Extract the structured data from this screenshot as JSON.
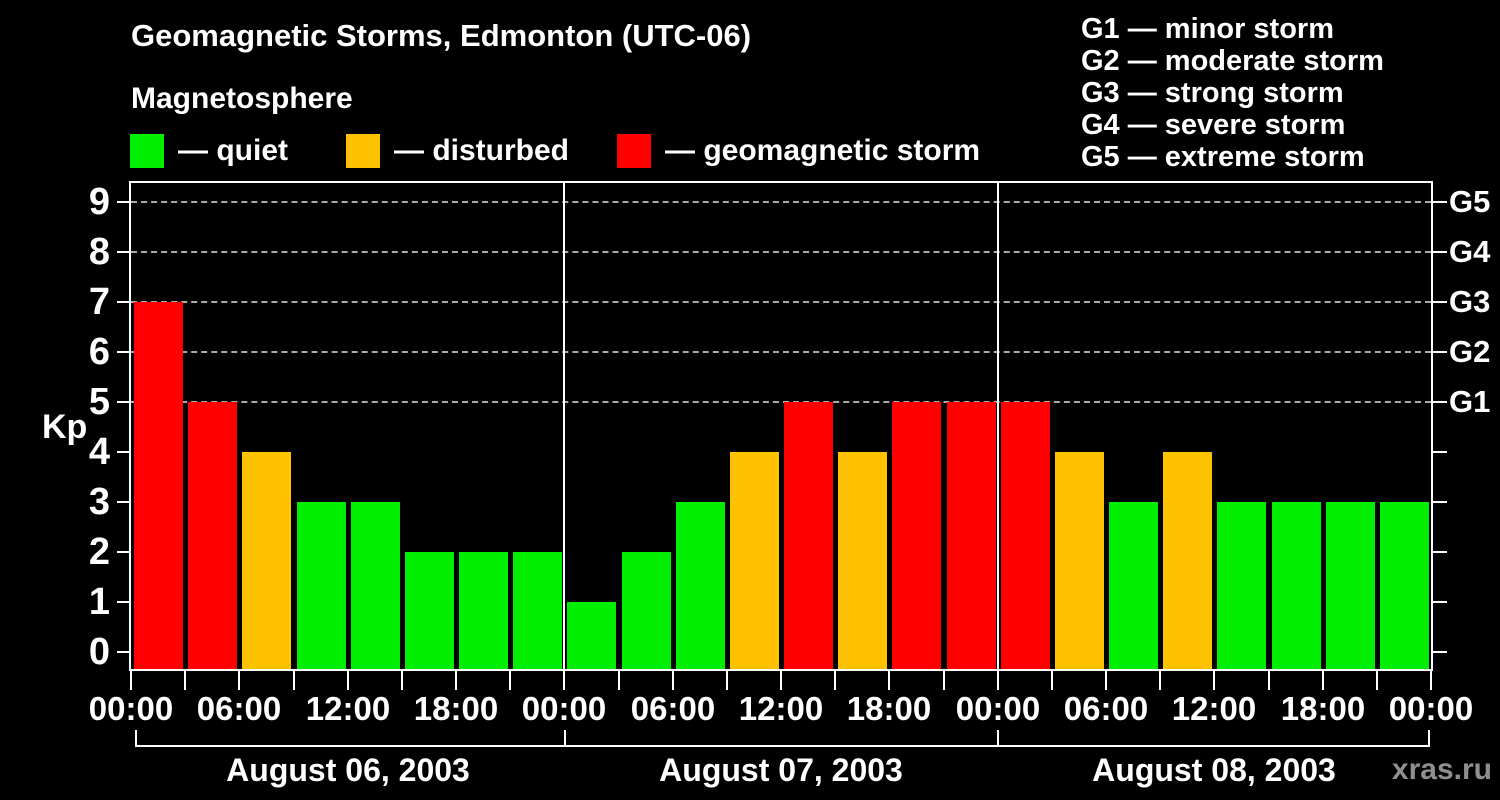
{
  "header": {
    "title": "Geomagnetic Storms, Edmonton (UTC-06)",
    "subtitle": "Magnetosphere"
  },
  "legend": {
    "items": [
      {
        "label": "— quiet",
        "color": "#00EE00"
      },
      {
        "label": "— disturbed",
        "color": "#FFC200"
      },
      {
        "label": "— geomagnetic storm",
        "color": "#FF0000"
      }
    ]
  },
  "g_legend": {
    "lines": [
      "G1 — minor storm",
      "G2 — moderate storm",
      "G3 — strong storm",
      "G4 — severe storm",
      "G5 — extreme storm"
    ]
  },
  "footer": {
    "watermark": "xras.ru"
  },
  "chart_data": {
    "type": "bar",
    "title": "Geomagnetic Storms, Edmonton (UTC-06)",
    "subtitle": "Magnetosphere",
    "ylabel": "Kp",
    "ylim": [
      0,
      9
    ],
    "yticks": [
      0,
      1,
      2,
      3,
      4,
      5,
      6,
      7,
      8,
      9
    ],
    "gridlines_at_kp": [
      5,
      6,
      7,
      8,
      9
    ],
    "grid": "dashed, only at G-storm levels",
    "right_axis": [
      {
        "kp": 5,
        "label": "G1"
      },
      {
        "kp": 6,
        "label": "G2"
      },
      {
        "kp": 7,
        "label": "G3"
      },
      {
        "kp": 8,
        "label": "G4"
      },
      {
        "kp": 9,
        "label": "G5"
      }
    ],
    "hours_per_bar": 3,
    "x_tick_interval_hours": 3,
    "x_tick_labels": [
      "00:00",
      "06:00",
      "12:00",
      "18:00",
      "00:00",
      "06:00",
      "12:00",
      "18:00",
      "00:00",
      "06:00",
      "12:00",
      "18:00",
      "00:00"
    ],
    "days": [
      {
        "date": "August 06, 2003",
        "values": [
          7,
          5,
          4,
          3,
          3,
          2,
          2,
          2
        ]
      },
      {
        "date": "August 07, 2003",
        "values": [
          1,
          2,
          3,
          4,
          5,
          4,
          5,
          5
        ]
      },
      {
        "date": "August 08, 2003",
        "values": [
          5,
          4,
          3,
          4,
          3,
          3,
          3,
          3
        ]
      }
    ],
    "colors": {
      "quiet": "#00EE00",
      "disturbed": "#FFC200",
      "storm": "#FF0000",
      "axis": "#FFFFFF",
      "grid": "#AAAAAA",
      "background": "#000000",
      "watermark": "#8F8F8F"
    },
    "color_rule": {
      "quiet_max_kp": 3,
      "disturbed_kp": 4,
      "storm_min_kp": 5
    }
  }
}
